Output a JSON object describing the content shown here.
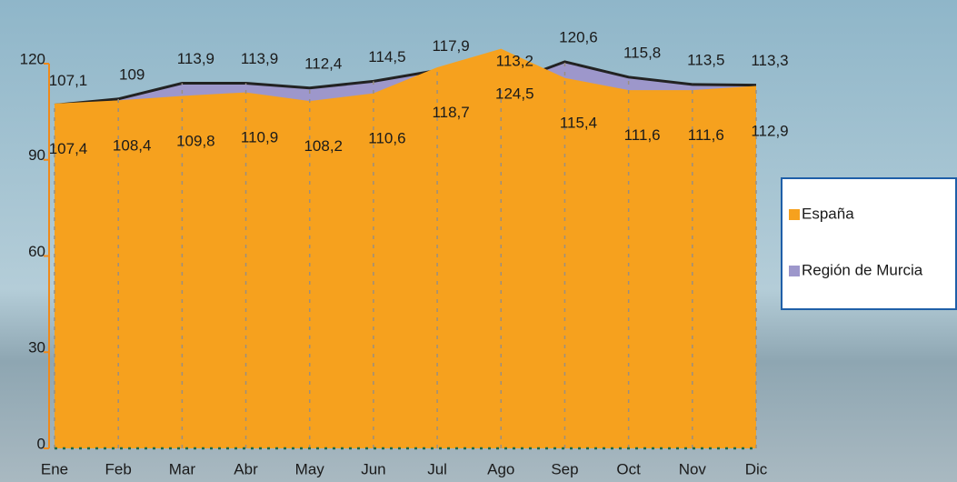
{
  "chart_data": {
    "type": "area",
    "categories": [
      "Ene",
      "Feb",
      "Mar",
      "Abr",
      "May",
      "Jun",
      "Jul",
      "Ago",
      "Sep",
      "Oct",
      "Nov",
      "Dic"
    ],
    "series": [
      {
        "name": "Región de Murcia",
        "color": "#9d97cb",
        "values": [
          107.1,
          109,
          113.9,
          113.9,
          112.4,
          114.5,
          117.9,
          113.2,
          120.6,
          115.8,
          113.5,
          113.3
        ],
        "value_labels": [
          "107,1",
          "109",
          "113,9",
          "113,9",
          "112,4",
          "114,5",
          "117,9",
          "113,2",
          "120,6",
          "115,8",
          "113,5",
          "113,3"
        ]
      },
      {
        "name": "España",
        "color": "#f6a11e",
        "values": [
          107.4,
          108.4,
          109.8,
          110.9,
          108.2,
          110.6,
          118.7,
          124.5,
          115.4,
          111.6,
          111.6,
          112.9
        ],
        "value_labels": [
          "107,4",
          "108,4",
          "109,8",
          "110,9",
          "108,2",
          "110,6",
          "118,7",
          "124,5",
          "115,4",
          "111,6",
          "111,6",
          "112,9"
        ]
      }
    ],
    "ylim": [
      0,
      125
    ],
    "yticks": [
      0,
      30,
      60,
      90,
      120
    ],
    "grid": true,
    "legend": "right"
  }
}
